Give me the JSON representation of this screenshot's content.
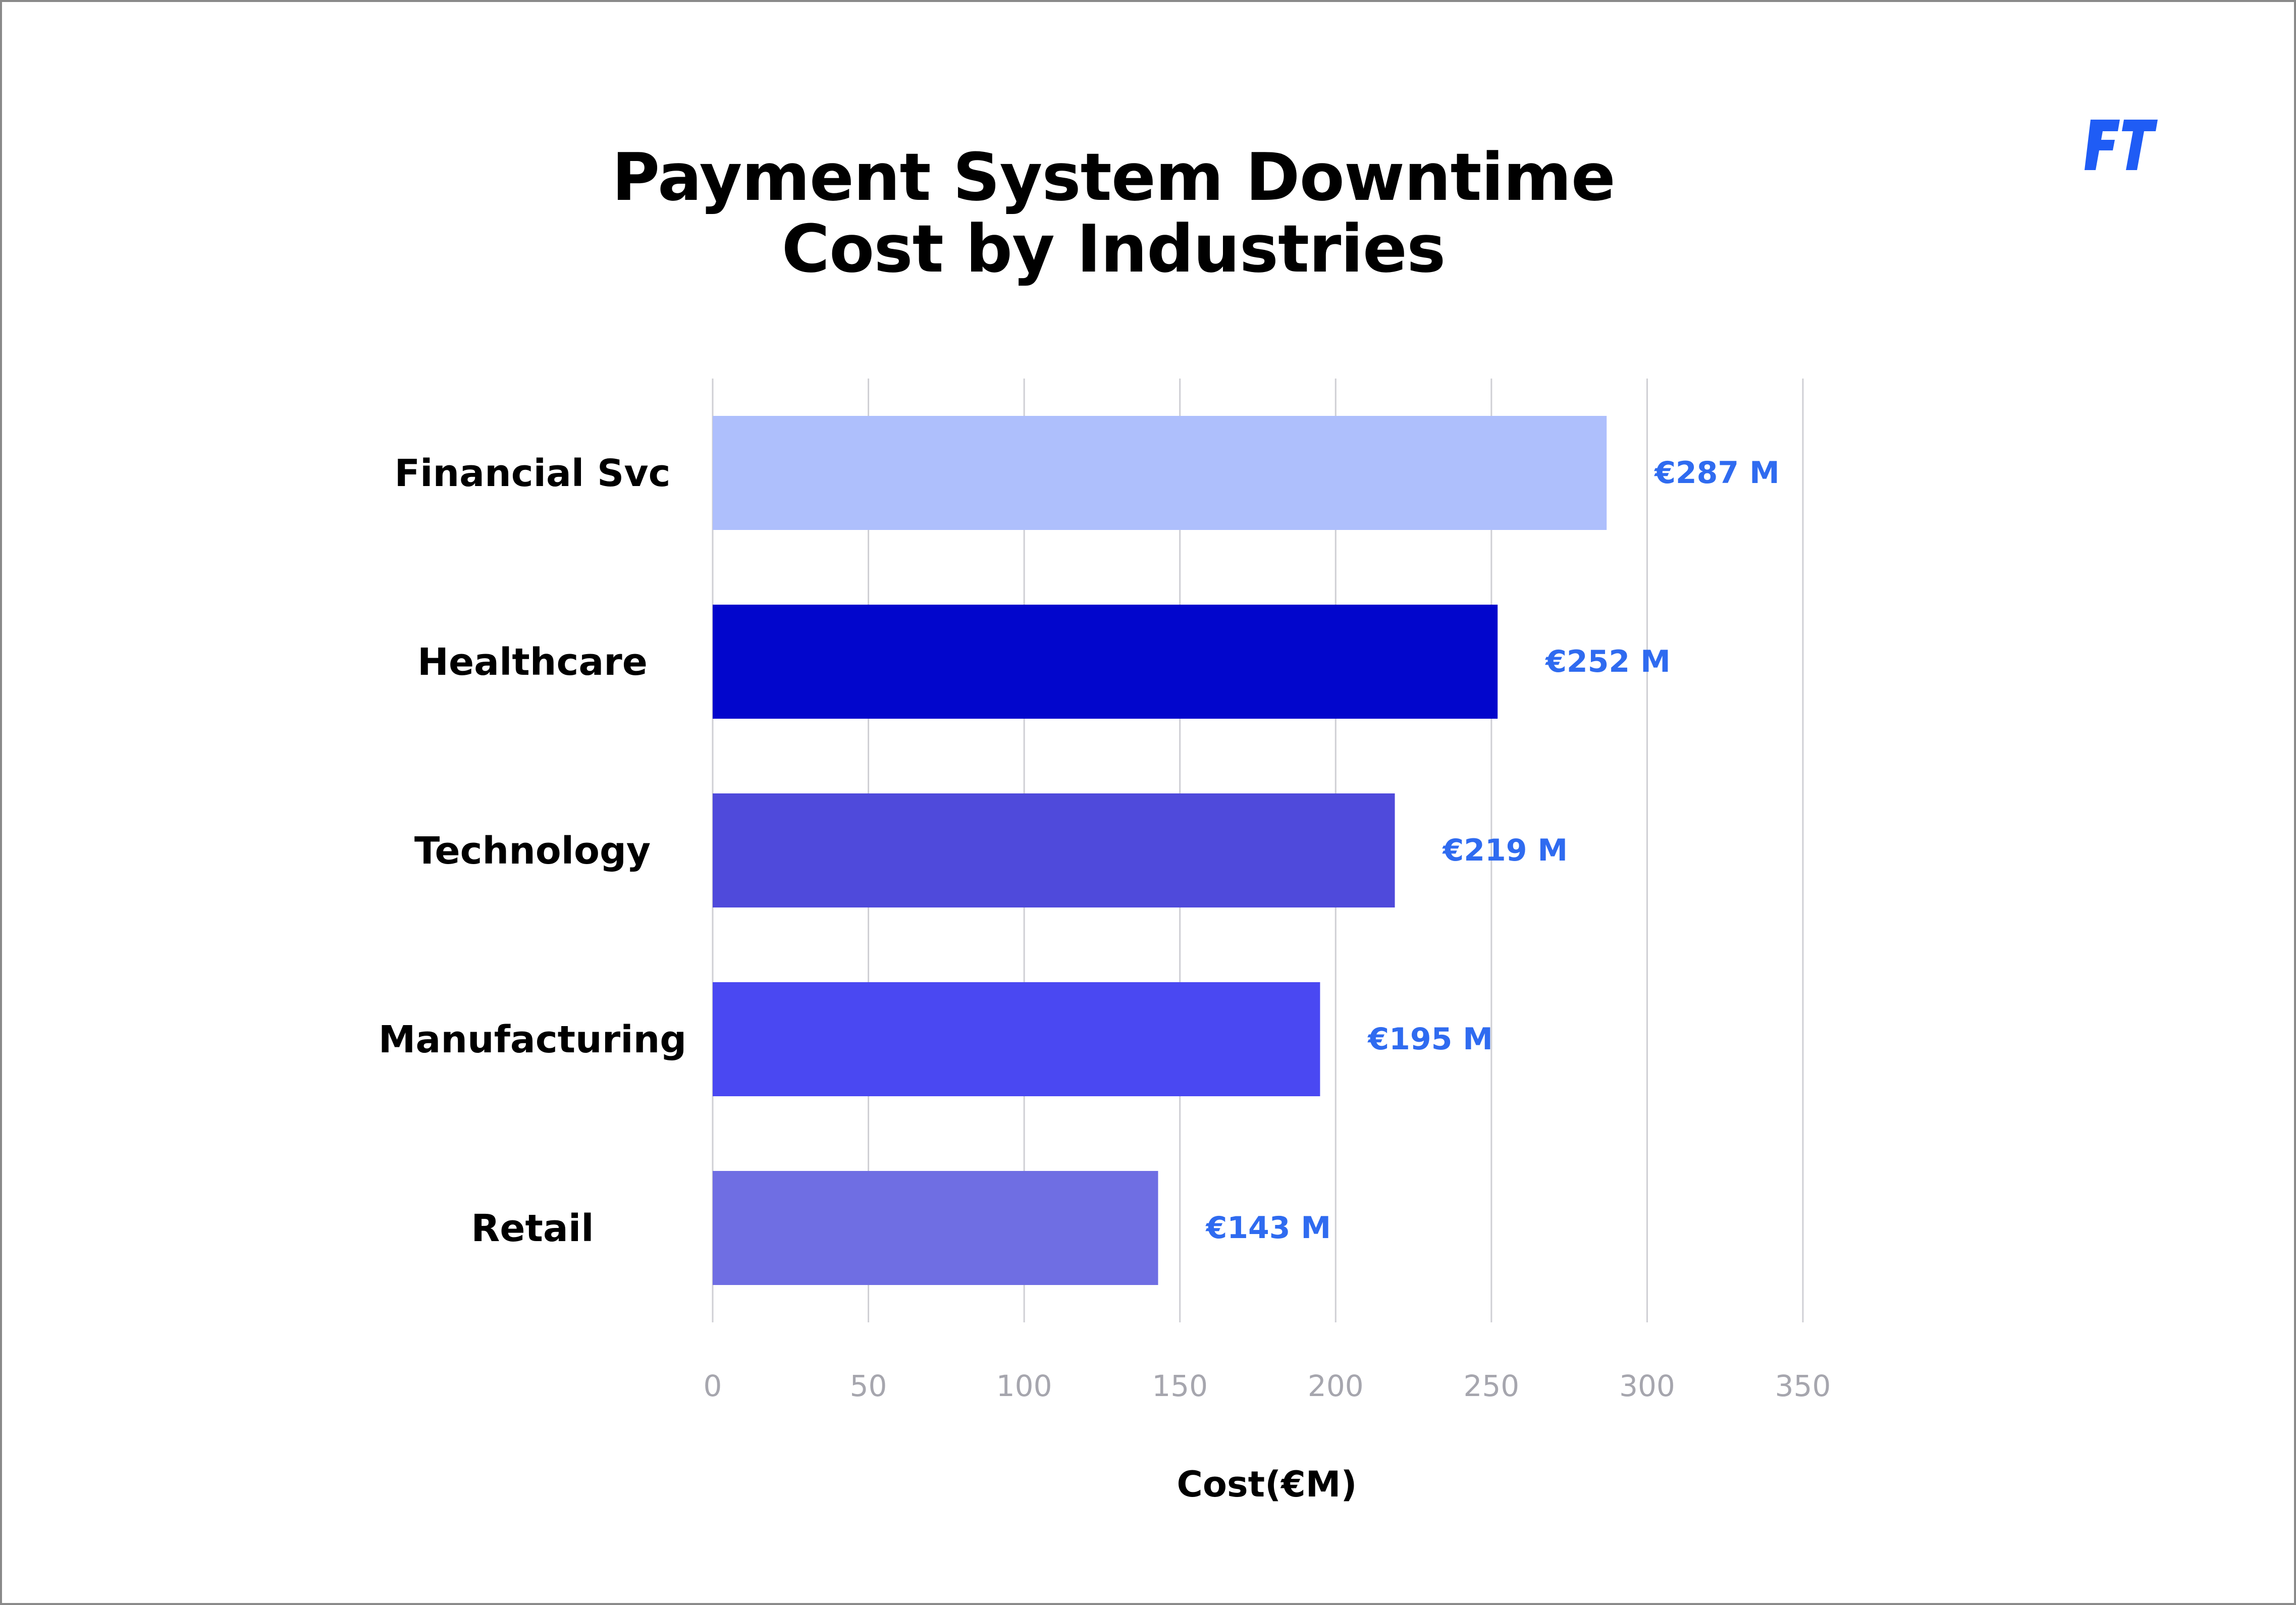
{
  "chart_data": {
    "type": "bar",
    "orientation": "horizontal",
    "title_lines": [
      "Payment System Downtime",
      "Cost by Industries"
    ],
    "categories": [
      "Financial Svc",
      "Healthcare",
      "Technology",
      "Manufacturing",
      "Retail"
    ],
    "values": [
      287,
      252,
      219,
      195,
      143
    ],
    "value_labels": [
      "€287 M",
      "€252 M",
      "€219 M",
      "€195 M",
      "€143 M"
    ],
    "bar_colors": [
      "#aebffc",
      "#0206cc",
      "#4f4adb",
      "#4a48f2",
      "#6f6ee3"
    ],
    "value_label_color": "#2f6bf0",
    "xlabel": "Cost(€M)",
    "ylabel": "",
    "xlim": [
      0,
      350
    ],
    "xticks": [
      0,
      50,
      100,
      150,
      200,
      250,
      300,
      350
    ],
    "xtick_labels": [
      "0",
      "50",
      "100",
      "150",
      "200",
      "250",
      "300",
      "350"
    ],
    "grid": "vertical",
    "legend": "none"
  },
  "logo": {
    "icon": "ft-logo-icon",
    "color": "#1f5cf5"
  }
}
